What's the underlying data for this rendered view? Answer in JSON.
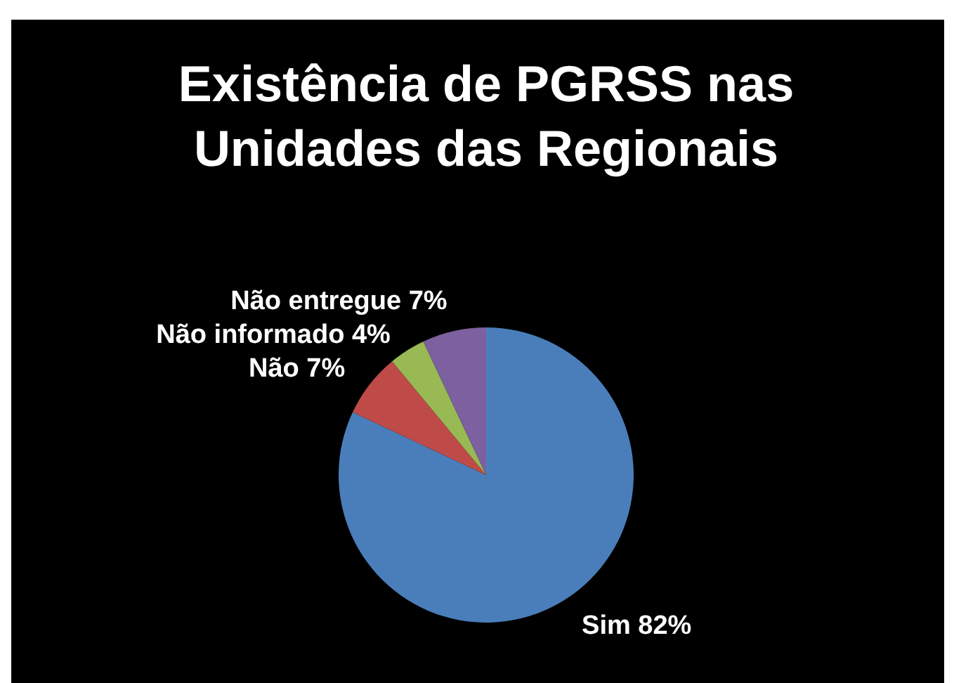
{
  "chart_data": {
    "type": "pie",
    "title": "Existência de PGRSS nas Unidades das Regionais",
    "categories": [
      "Sim",
      "Não",
      "Não informado",
      "Não entregue"
    ],
    "values": [
      82,
      7,
      4,
      7
    ],
    "value_labels": [
      "82%",
      "7%",
      "4%",
      "7%"
    ],
    "colors": [
      "#4a7ebb",
      "#be4b48",
      "#98b954",
      "#7d60a0"
    ],
    "legend": false
  }
}
